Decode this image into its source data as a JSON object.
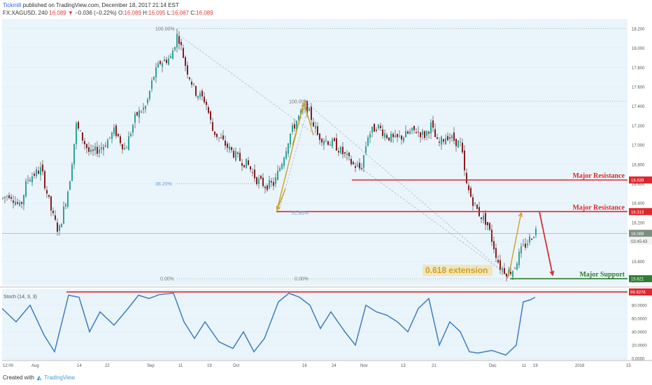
{
  "header": {
    "author": "Tickmill",
    "published_text": "published on TradingView.com, December 18, 2017 21:14 EST",
    "symbol_text": "FX:XAGUSD, 240",
    "last_price": "16.089",
    "change_arrow": "▼",
    "change_text": "−0.036 (−0.22%)",
    "o_label": "O:",
    "o_value": "16.089",
    "h_label": "H:",
    "h_value": "16.095",
    "l_label": "L:",
    "l_value": "16.087",
    "c_label": "C:",
    "c_value": "16.089"
  },
  "footer": {
    "created_with": "Created with",
    "brand": "TradingView"
  },
  "colors": {
    "background": "#eaf4fb",
    "candle_up": "#26a69a",
    "candle_down": "#8b1a1a",
    "resistance": "#e0262a",
    "support": "#2e7d32",
    "fib_arrow": "#c9a227",
    "stoch_line": "#3a7fc0",
    "label_orange": "#d69d1e"
  },
  "chart_data": [
    {
      "type": "candlestick",
      "symbol": "FX:XAGUSD",
      "timeframe": "240",
      "y_ticks": [
        18.2,
        18.0,
        17.8,
        17.6,
        17.4,
        17.2,
        17.0,
        16.8,
        16.6,
        16.4,
        16.2,
        16.0,
        15.8,
        15.6
      ],
      "y_tick_labels": [
        "18.200",
        "18.000",
        "17.800",
        "17.600",
        "17.400",
        "17.200",
        "17.000",
        "16.800",
        "16.600",
        "16.400",
        "16.200",
        "16.000",
        "15.800",
        "15.600"
      ],
      "ylim": [
        15.55,
        18.3
      ],
      "x_labels": [
        "12:00",
        "Aug",
        "14",
        "22",
        "Sep",
        "11",
        "19",
        "Oct",
        "16",
        "24",
        "Nov",
        "13",
        "21",
        "Dec",
        "11",
        "19",
        "2018",
        "15"
      ],
      "price_path": [
        [
          0,
          16.45
        ],
        [
          10,
          16.5
        ],
        [
          25,
          16.35
        ],
        [
          35,
          16.65
        ],
        [
          55,
          16.75
        ],
        [
          70,
          16.3
        ],
        [
          80,
          16.1
        ],
        [
          95,
          16.6
        ],
        [
          105,
          17.2
        ],
        [
          125,
          16.9
        ],
        [
          145,
          17.0
        ],
        [
          160,
          17.15
        ],
        [
          175,
          16.95
        ],
        [
          190,
          17.3
        ],
        [
          205,
          17.4
        ],
        [
          215,
          17.7
        ],
        [
          225,
          17.85
        ],
        [
          240,
          17.9
        ],
        [
          250,
          18.15
        ],
        [
          262,
          17.8
        ],
        [
          275,
          17.55
        ],
        [
          290,
          17.45
        ],
        [
          300,
          17.15
        ],
        [
          312,
          17.05
        ],
        [
          325,
          16.95
        ],
        [
          338,
          16.85
        ],
        [
          350,
          16.8
        ],
        [
          362,
          16.65
        ],
        [
          375,
          16.58
        ],
        [
          388,
          16.6
        ],
        [
          400,
          16.85
        ],
        [
          410,
          17.1
        ],
        [
          420,
          17.25
        ],
        [
          433,
          17.4
        ],
        [
          440,
          17.3
        ],
        [
          450,
          17.1
        ],
        [
          462,
          17.05
        ],
        [
          475,
          17.0
        ],
        [
          488,
          16.9
        ],
        [
          500,
          16.8
        ],
        [
          512,
          16.75
        ],
        [
          522,
          17.1
        ],
        [
          535,
          17.2
        ],
        [
          548,
          17.1
        ],
        [
          560,
          17.05
        ],
        [
          575,
          17.1
        ],
        [
          590,
          17.15
        ],
        [
          603,
          17.1
        ],
        [
          612,
          17.2
        ],
        [
          622,
          17.0
        ],
        [
          635,
          17.1
        ],
        [
          645,
          17.05
        ],
        [
          655,
          17.0
        ],
        [
          662,
          16.6
        ],
        [
          670,
          16.45
        ],
        [
          680,
          16.3
        ],
        [
          692,
          16.2
        ],
        [
          700,
          16.0
        ],
        [
          710,
          15.75
        ],
        [
          722,
          15.68
        ],
        [
          730,
          15.72
        ],
        [
          740,
          15.9
        ],
        [
          750,
          16.0
        ],
        [
          762,
          16.12
        ]
      ],
      "stoch": [
        [
          0,
          75
        ],
        [
          20,
          55
        ],
        [
          40,
          80
        ],
        [
          60,
          35
        ],
        [
          75,
          10
        ],
        [
          95,
          95
        ],
        [
          110,
          92
        ],
        [
          125,
          40
        ],
        [
          140,
          70
        ],
        [
          160,
          50
        ],
        [
          180,
          75
        ],
        [
          195,
          95
        ],
        [
          210,
          90
        ],
        [
          225,
          96
        ],
        [
          245,
          98
        ],
        [
          260,
          55
        ],
        [
          275,
          30
        ],
        [
          290,
          55
        ],
        [
          310,
          25
        ],
        [
          330,
          15
        ],
        [
          345,
          40
        ],
        [
          360,
          10
        ],
        [
          375,
          30
        ],
        [
          395,
          85
        ],
        [
          410,
          98
        ],
        [
          425,
          92
        ],
        [
          440,
          80
        ],
        [
          455,
          45
        ],
        [
          470,
          70
        ],
        [
          490,
          40
        ],
        [
          505,
          20
        ],
        [
          520,
          80
        ],
        [
          535,
          70
        ],
        [
          550,
          65
        ],
        [
          565,
          55
        ],
        [
          580,
          40
        ],
        [
          595,
          75
        ],
        [
          610,
          90
        ],
        [
          625,
          20
        ],
        [
          640,
          55
        ],
        [
          655,
          40
        ],
        [
          668,
          10
        ],
        [
          680,
          8
        ],
        [
          700,
          12
        ],
        [
          720,
          5
        ],
        [
          735,
          20
        ],
        [
          745,
          85
        ],
        [
          755,
          88
        ],
        [
          762,
          92
        ]
      ],
      "horizontal_levels": [
        {
          "label": "Major Resistance",
          "value": 16.639,
          "value_label": "16.639",
          "color": "#e0262a"
        },
        {
          "label": "Major Resistance",
          "value": 16.313,
          "value_label": "16.313",
          "color": "#e0262a"
        },
        {
          "label": "Major Support",
          "value": 15.621,
          "value_label": "15.621",
          "color": "#2e7d32"
        }
      ],
      "current_price_label": "16.089",
      "countdown_label": "03:45:43",
      "fib_labels": [
        "100.00%",
        "38.20%",
        "0.00%",
        "100.00%",
        "61.80%",
        "0.00%"
      ],
      "annotation": "0.618 extension",
      "stoch_title": "Stoch (14, 3, 3)",
      "stoch_value_label": "99.9376",
      "stoch_ticks": [
        "80.0000",
        "60.0000",
        "40.0000",
        "20.0000",
        "0.0000"
      ],
      "stoch_tick_values": [
        80,
        60,
        40,
        20,
        0
      ]
    }
  ]
}
